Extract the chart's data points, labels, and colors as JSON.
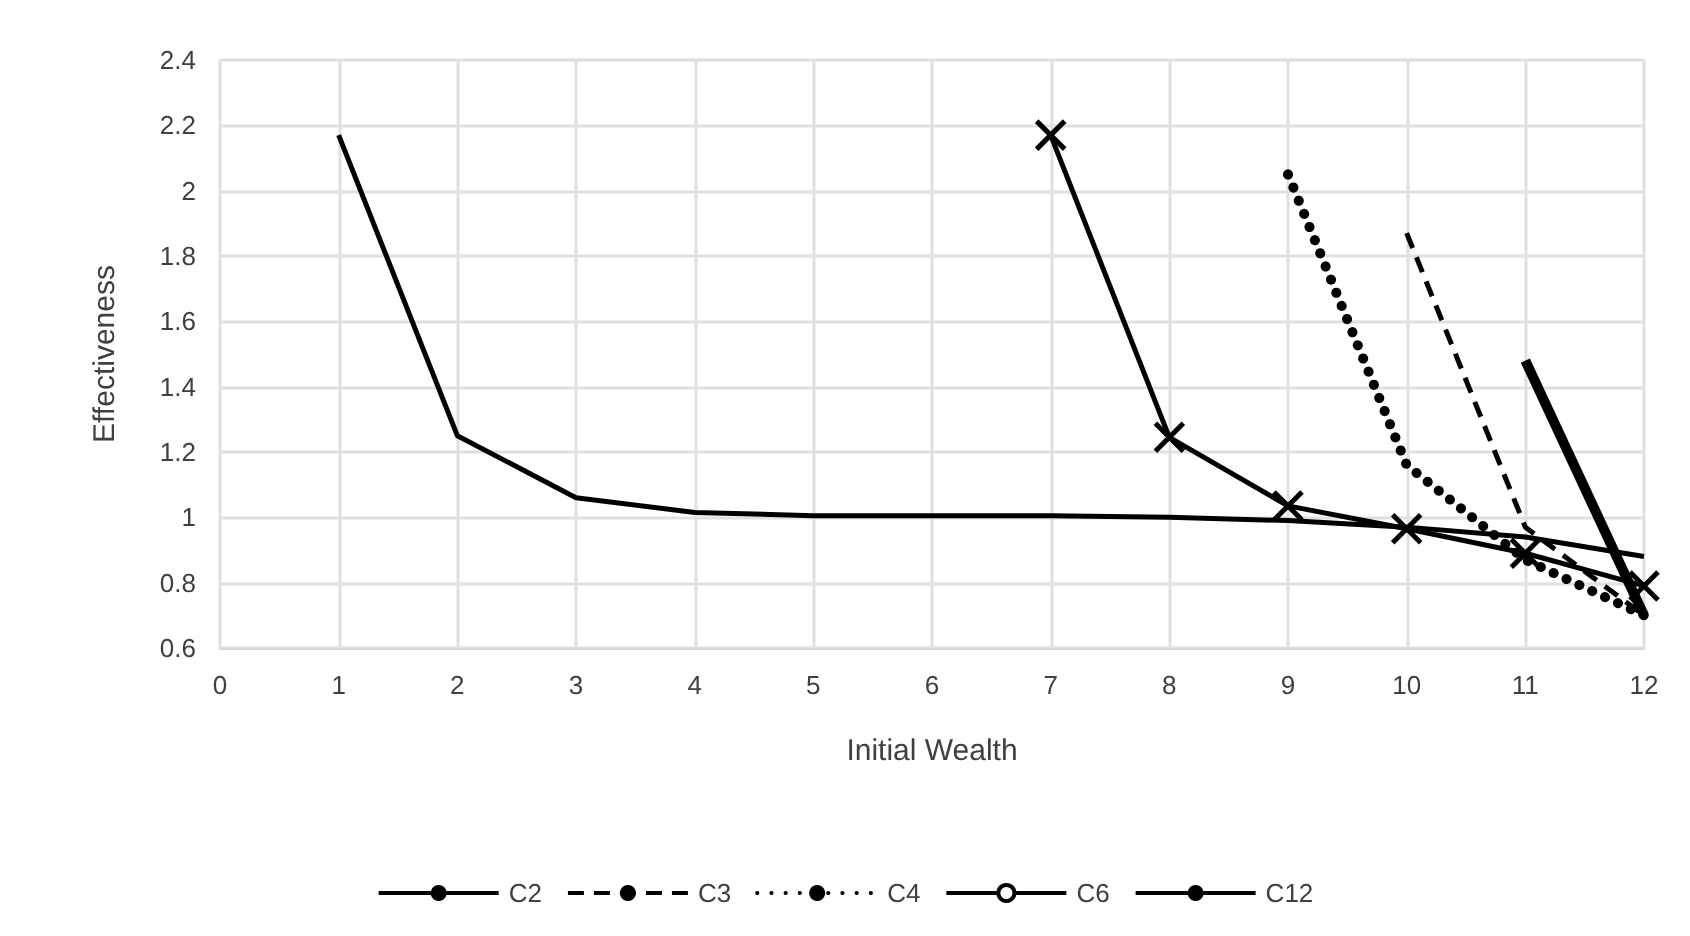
{
  "chart_data": {
    "type": "line",
    "xlabel": "Initial Wealth",
    "ylabel": "Effectiveness",
    "xlim": [
      0,
      12
    ],
    "xticks": [
      0,
      1,
      2,
      3,
      4,
      5,
      6,
      7,
      8,
      9,
      10,
      11,
      12
    ],
    "ylim": [
      0.6,
      2.4
    ],
    "yticks": [
      0.6,
      0.8,
      1,
      1.2,
      1.4,
      1.6,
      1.8,
      2,
      2.2,
      2.4
    ],
    "grid": true,
    "legend": "bottom",
    "marker": "none",
    "series": [
      {
        "name": "C2",
        "color": "#000000",
        "line_style": "solid",
        "x": [
          11,
          12
        ],
        "values": [
          1.48,
          0.7
        ]
      },
      {
        "name": "C3",
        "color": "#000000",
        "line_style": "dashed",
        "x": [
          10,
          11,
          12
        ],
        "values": [
          1.87,
          0.97,
          0.7
        ]
      },
      {
        "name": "C4",
        "color": "#000000",
        "line_style": "dotted",
        "x": [
          9,
          10,
          11,
          12
        ],
        "values": [
          2.05,
          1.16,
          0.87,
          0.7
        ]
      },
      {
        "name": "C6",
        "color": "#000000",
        "line_style": "solid",
        "marker": "cross",
        "x": [
          7,
          8,
          9,
          10,
          11,
          12
        ],
        "values": [
          2.17,
          1.245,
          1.035,
          0.965,
          0.89,
          0.79
        ]
      },
      {
        "name": "C12",
        "color": "#000000",
        "line_style": "solid",
        "x": [
          1,
          2,
          3,
          4,
          5,
          6,
          7,
          8,
          9,
          10,
          11,
          12
        ],
        "values": [
          2.17,
          1.25,
          1.06,
          1.015,
          1.005,
          1.005,
          1.005,
          1.0,
          0.99,
          0.97,
          0.94,
          0.88
        ]
      }
    ]
  }
}
